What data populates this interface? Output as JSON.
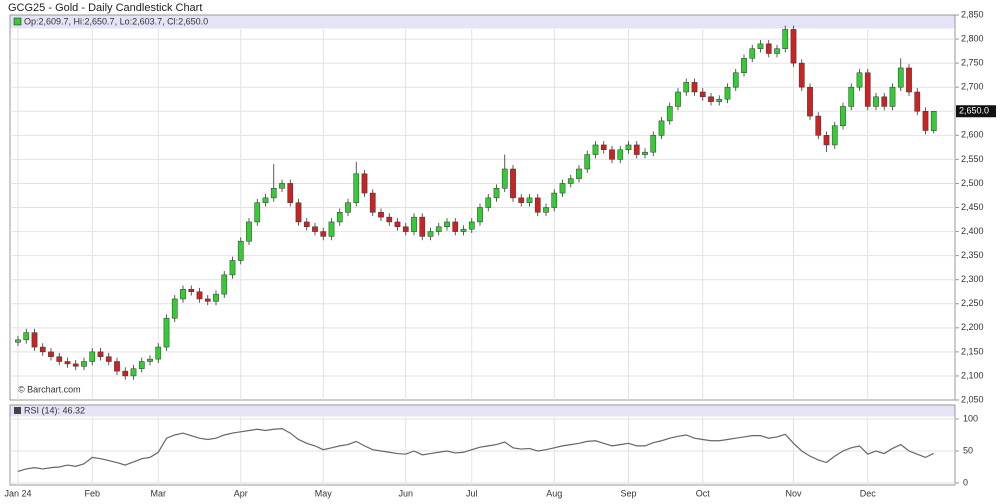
{
  "chart_data": [
    {
      "type": "candlestick",
      "title": "GCG25 - Gold - Daily Candlestick Chart",
      "legend": "Op:2,609.7, Hi:2,650.7, Lo:2,603.7, Cl:2,650.0",
      "source": "© Barchart.com",
      "last_price_label": "2,650.0",
      "up_color": "#33cc33",
      "down_color": "#cc2222",
      "grid": true,
      "ylim": [
        2050,
        2850
      ],
      "yticks": [
        {
          "value": 2050,
          "label": "2,050"
        },
        {
          "value": 2100,
          "label": "2,100"
        },
        {
          "value": 2150,
          "label": "2,150"
        },
        {
          "value": 2200,
          "label": "2,200"
        },
        {
          "value": 2250,
          "label": "2,250"
        },
        {
          "value": 2300,
          "label": "2,300"
        },
        {
          "value": 2350,
          "label": "2,350"
        },
        {
          "value": 2400,
          "label": "2,400"
        },
        {
          "value": 2450,
          "label": "2,450"
        },
        {
          "value": 2500,
          "label": "2,500"
        },
        {
          "value": 2550,
          "label": "2,550"
        },
        {
          "value": 2600,
          "label": "2,600"
        },
        {
          "value": 2650,
          "label": "2,650"
        },
        {
          "value": 2700,
          "label": "2,700"
        },
        {
          "value": 2750,
          "label": "2,750"
        },
        {
          "value": 2800,
          "label": "2,800"
        },
        {
          "value": 2850,
          "label": "2,850"
        }
      ],
      "ohlc": [
        [
          2170,
          2183,
          2162,
          2175
        ],
        [
          2175,
          2198,
          2167,
          2190
        ],
        [
          2190,
          2198,
          2152,
          2160
        ],
        [
          2160,
          2168,
          2142,
          2150
        ],
        [
          2150,
          2158,
          2132,
          2140
        ],
        [
          2140,
          2148,
          2122,
          2130
        ],
        [
          2130,
          2138,
          2117,
          2125
        ],
        [
          2125,
          2133,
          2112,
          2120
        ],
        [
          2120,
          2138,
          2112,
          2130
        ],
        [
          2130,
          2158,
          2122,
          2150
        ],
        [
          2150,
          2158,
          2132,
          2140
        ],
        [
          2140,
          2148,
          2122,
          2130
        ],
        [
          2130,
          2138,
          2102,
          2110
        ],
        [
          2110,
          2118,
          2092,
          2100
        ],
        [
          2100,
          2123,
          2092,
          2115
        ],
        [
          2115,
          2138,
          2107,
          2130
        ],
        [
          2130,
          2143,
          2122,
          2135
        ],
        [
          2135,
          2168,
          2127,
          2160
        ],
        [
          2160,
          2228,
          2152,
          2220
        ],
        [
          2220,
          2268,
          2212,
          2260
        ],
        [
          2260,
          2288,
          2252,
          2280
        ],
        [
          2280,
          2288,
          2267,
          2275
        ],
        [
          2275,
          2283,
          2252,
          2260
        ],
        [
          2260,
          2268,
          2247,
          2255
        ],
        [
          2255,
          2278,
          2247,
          2270
        ],
        [
          2270,
          2318,
          2262,
          2310
        ],
        [
          2310,
          2348,
          2302,
          2340
        ],
        [
          2340,
          2388,
          2332,
          2380
        ],
        [
          2380,
          2428,
          2372,
          2420
        ],
        [
          2420,
          2468,
          2412,
          2460
        ],
        [
          2460,
          2478,
          2452,
          2470
        ],
        [
          2470,
          2540,
          2462,
          2490
        ],
        [
          2490,
          2508,
          2482,
          2500
        ],
        [
          2500,
          2508,
          2452,
          2460
        ],
        [
          2460,
          2468,
          2412,
          2420
        ],
        [
          2420,
          2428,
          2402,
          2410
        ],
        [
          2410,
          2418,
          2392,
          2400
        ],
        [
          2400,
          2408,
          2382,
          2390
        ],
        [
          2390,
          2428,
          2382,
          2420
        ],
        [
          2420,
          2448,
          2412,
          2440
        ],
        [
          2440,
          2468,
          2432,
          2460
        ],
        [
          2460,
          2545,
          2452,
          2520
        ],
        [
          2520,
          2528,
          2472,
          2480
        ],
        [
          2480,
          2488,
          2432,
          2440
        ],
        [
          2440,
          2448,
          2422,
          2430
        ],
        [
          2430,
          2438,
          2412,
          2420
        ],
        [
          2420,
          2428,
          2402,
          2410
        ],
        [
          2410,
          2418,
          2392,
          2400
        ],
        [
          2400,
          2438,
          2392,
          2430
        ],
        [
          2430,
          2438,
          2382,
          2390
        ],
        [
          2390,
          2408,
          2382,
          2400
        ],
        [
          2400,
          2418,
          2392,
          2410
        ],
        [
          2410,
          2428,
          2402,
          2420
        ],
        [
          2420,
          2428,
          2392,
          2400
        ],
        [
          2400,
          2413,
          2392,
          2405
        ],
        [
          2405,
          2428,
          2397,
          2420
        ],
        [
          2420,
          2458,
          2412,
          2450
        ],
        [
          2450,
          2478,
          2442,
          2470
        ],
        [
          2470,
          2498,
          2462,
          2490
        ],
        [
          2490,
          2560,
          2482,
          2530
        ],
        [
          2530,
          2538,
          2462,
          2470
        ],
        [
          2470,
          2478,
          2452,
          2460
        ],
        [
          2460,
          2478,
          2452,
          2470
        ],
        [
          2470,
          2478,
          2432,
          2440
        ],
        [
          2440,
          2458,
          2432,
          2450
        ],
        [
          2450,
          2488,
          2442,
          2480
        ],
        [
          2480,
          2508,
          2472,
          2500
        ],
        [
          2500,
          2518,
          2492,
          2510
        ],
        [
          2510,
          2538,
          2502,
          2530
        ],
        [
          2530,
          2568,
          2522,
          2560
        ],
        [
          2560,
          2588,
          2552,
          2580
        ],
        [
          2580,
          2588,
          2562,
          2570
        ],
        [
          2570,
          2578,
          2542,
          2550
        ],
        [
          2550,
          2578,
          2542,
          2570
        ],
        [
          2570,
          2588,
          2562,
          2580
        ],
        [
          2580,
          2588,
          2552,
          2560
        ],
        [
          2560,
          2573,
          2552,
          2565
        ],
        [
          2565,
          2608,
          2557,
          2600
        ],
        [
          2600,
          2638,
          2592,
          2630
        ],
        [
          2630,
          2668,
          2622,
          2660
        ],
        [
          2660,
          2698,
          2652,
          2690
        ],
        [
          2690,
          2718,
          2682,
          2710
        ],
        [
          2710,
          2718,
          2682,
          2690
        ],
        [
          2690,
          2698,
          2672,
          2680
        ],
        [
          2680,
          2688,
          2662,
          2670
        ],
        [
          2670,
          2683,
          2662,
          2675
        ],
        [
          2675,
          2708,
          2667,
          2700
        ],
        [
          2700,
          2738,
          2692,
          2730
        ],
        [
          2730,
          2768,
          2722,
          2760
        ],
        [
          2760,
          2788,
          2752,
          2780
        ],
        [
          2780,
          2798,
          2772,
          2790
        ],
        [
          2790,
          2798,
          2762,
          2770
        ],
        [
          2770,
          2788,
          2762,
          2780
        ],
        [
          2780,
          2828,
          2772,
          2820
        ],
        [
          2820,
          2828,
          2742,
          2750
        ],
        [
          2750,
          2758,
          2692,
          2700
        ],
        [
          2700,
          2708,
          2632,
          2640
        ],
        [
          2640,
          2648,
          2592,
          2600
        ],
        [
          2600,
          2608,
          2565,
          2580
        ],
        [
          2580,
          2628,
          2572,
          2620
        ],
        [
          2620,
          2668,
          2612,
          2660
        ],
        [
          2660,
          2708,
          2652,
          2700
        ],
        [
          2700,
          2738,
          2692,
          2730
        ],
        [
          2730,
          2738,
          2652,
          2660
        ],
        [
          2660,
          2688,
          2652,
          2680
        ],
        [
          2680,
          2688,
          2652,
          2660
        ],
        [
          2660,
          2708,
          2652,
          2700
        ],
        [
          2700,
          2760,
          2692,
          2740
        ],
        [
          2740,
          2748,
          2682,
          2690
        ],
        [
          2690,
          2698,
          2642,
          2650
        ],
        [
          2650,
          2658,
          2602,
          2610
        ],
        [
          2609.7,
          2650.7,
          2603.7,
          2650.0
        ]
      ]
    },
    {
      "type": "line",
      "grid": true,
      "ylim": [
        0,
        100
      ],
      "yticks": [
        0,
        50,
        100
      ],
      "categories": [
        "Jan 24",
        null,
        null,
        null,
        null,
        null,
        null,
        null,
        null,
        "Feb",
        null,
        null,
        null,
        null,
        null,
        null,
        null,
        "Mar",
        null,
        null,
        null,
        null,
        null,
        null,
        null,
        null,
        null,
        "Apr",
        null,
        null,
        null,
        null,
        null,
        null,
        null,
        null,
        null,
        "May",
        null,
        null,
        null,
        null,
        null,
        null,
        null,
        null,
        null,
        "Jun",
        null,
        null,
        null,
        null,
        null,
        null,
        null,
        "Jul",
        null,
        null,
        null,
        null,
        null,
        null,
        null,
        null,
        null,
        "Aug",
        null,
        null,
        null,
        null,
        null,
        null,
        null,
        null,
        "Sep",
        null,
        null,
        null,
        null,
        null,
        null,
        null,
        null,
        "Oct",
        null,
        null,
        null,
        null,
        null,
        null,
        null,
        null,
        null,
        null,
        "Nov",
        null,
        null,
        null,
        null,
        null,
        null,
        null,
        null,
        "Dec",
        null,
        null,
        null,
        null,
        null,
        null,
        null,
        null
      ],
      "series": [
        {
          "name": "RSI (14): 46.32",
          "color": "#666666",
          "values": [
            18,
            22,
            24,
            22,
            24,
            25,
            28,
            26,
            30,
            40,
            38,
            35,
            32,
            28,
            33,
            38,
            40,
            48,
            70,
            75,
            78,
            74,
            70,
            68,
            70,
            75,
            78,
            80,
            82,
            84,
            82,
            84,
            85,
            78,
            68,
            62,
            58,
            52,
            55,
            58,
            60,
            65,
            58,
            52,
            50,
            48,
            46,
            45,
            50,
            44,
            46,
            48,
            50,
            47,
            48,
            52,
            56,
            58,
            60,
            64,
            55,
            53,
            54,
            50,
            52,
            55,
            58,
            60,
            62,
            65,
            66,
            62,
            58,
            60,
            62,
            58,
            58,
            63,
            66,
            70,
            73,
            75,
            70,
            68,
            66,
            66,
            68,
            70,
            72,
            74,
            74,
            70,
            72,
            76,
            62,
            50,
            42,
            36,
            32,
            42,
            50,
            55,
            58,
            45,
            50,
            46,
            54,
            60,
            50,
            45,
            40,
            46.32
          ]
        }
      ]
    }
  ]
}
